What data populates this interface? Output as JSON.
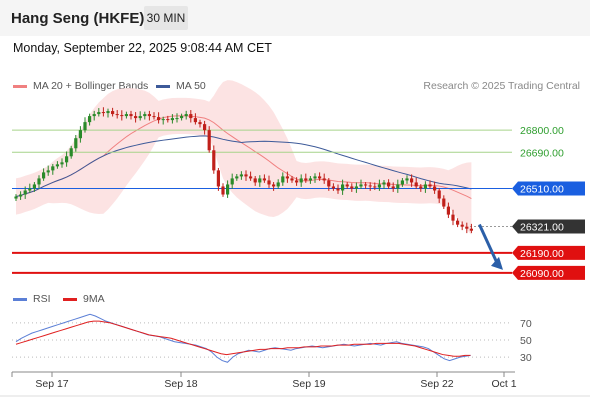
{
  "header": {
    "instrument": "Hang Seng (HKFE)",
    "timeframe": "30 MIN",
    "timestamp": "Monday, September 22, 2025 9:08:44 AM CET"
  },
  "legend": {
    "bollinger": {
      "label": "MA 20 + Bollinger Bands",
      "color": "#f08080"
    },
    "ma50": {
      "label": "MA 50",
      "color": "#3d5a99"
    },
    "credit": "Research © 2025 Trading Central"
  },
  "rsi_legend": {
    "rsi": {
      "label": "RSI",
      "color": "#5b7fd6"
    },
    "ma9": {
      "label": "9MA",
      "color": "#e02020"
    }
  },
  "chart_data": [
    {
      "type": "candlestick",
      "title": "Hang Seng (HKFE) 30 MIN",
      "ylim": [
        26030,
        26950
      ],
      "x_tick_labels": [
        "Sep 17",
        "Sep 18",
        "Sep 19",
        "Sep 22",
        "Oct 1"
      ],
      "ohlc_close": [
        26470,
        26480,
        26500,
        26510,
        26530,
        26560,
        26590,
        26600,
        26620,
        26630,
        26640,
        26670,
        26710,
        26760,
        26800,
        26840,
        26870,
        26880,
        26890,
        26885,
        26895,
        26880,
        26875,
        26870,
        26880,
        26870,
        26860,
        26870,
        26880,
        26870,
        26865,
        26850,
        26855,
        26850,
        26860,
        26860,
        26870,
        26880,
        26860,
        26840,
        26830,
        26800,
        26700,
        26600,
        26520,
        26480,
        26530,
        26560,
        26570,
        26580,
        26570,
        26560,
        26540,
        26560,
        26550,
        26530,
        26520,
        26540,
        26570,
        26560,
        26550,
        26540,
        26560,
        26550,
        26560,
        26570,
        26560,
        26550,
        26520,
        26510,
        26500,
        26530,
        26520,
        26510,
        26520,
        26530,
        26525,
        26520,
        26515,
        26530,
        26540,
        26520,
        26510,
        26530,
        26550,
        26560,
        26540,
        26520,
        26510,
        26530,
        26520,
        26500,
        26460,
        26420,
        26380,
        26350,
        26330,
        26320,
        26310,
        26300
      ],
      "levels": [
        {
          "value": 26800.0,
          "label": "26800.00",
          "color": "#2e9e2e",
          "style": "resistance"
        },
        {
          "value": 26690.0,
          "label": "26690.00",
          "color": "#2e9e2e",
          "style": "resistance"
        },
        {
          "value": 26510.0,
          "label": "26510.00",
          "color": "#1a5fe0",
          "style": "pivot"
        },
        {
          "value": 26321.0,
          "label": "26321.00",
          "color": "#333333",
          "style": "last-price"
        },
        {
          "value": 26190.0,
          "label": "26190.00",
          "color": "#e01010",
          "style": "support"
        },
        {
          "value": 26090.0,
          "label": "26090.00",
          "color": "#e01010",
          "style": "support"
        }
      ],
      "series": [
        {
          "name": "MA 20 + Bollinger Bands",
          "color": "#f08080"
        },
        {
          "name": "MA 50",
          "color": "#3d5a99"
        }
      ]
    },
    {
      "type": "line",
      "ylim": [
        15,
        85
      ],
      "y_tick_labels": [
        "70",
        "50",
        "30"
      ],
      "y_ticks": [
        70,
        50,
        30
      ],
      "series": [
        {
          "name": "RSI",
          "color": "#5b7fd6",
          "values": [
            48,
            52,
            55,
            58,
            60,
            62,
            64,
            66,
            68,
            70,
            72,
            74,
            76,
            78,
            80,
            78,
            75,
            72,
            70,
            68,
            66,
            64,
            62,
            60,
            58,
            56,
            55,
            54,
            52,
            50,
            48,
            47,
            46,
            45,
            44,
            42,
            40,
            36,
            30,
            26,
            24,
            30,
            34,
            36,
            38,
            37,
            36,
            38,
            40,
            41,
            40,
            39,
            38,
            40,
            41,
            42,
            43,
            42,
            41,
            42,
            43,
            44,
            45,
            44,
            43,
            44,
            45,
            46,
            45,
            44,
            46,
            47,
            48,
            46,
            45,
            44,
            43,
            42,
            40,
            36,
            32,
            28,
            26,
            28,
            30,
            31,
            32
          ]
        },
        {
          "name": "9MA",
          "color": "#e02020",
          "values": [
            45,
            47,
            49,
            51,
            53,
            55,
            57,
            59,
            61,
            63,
            65,
            67,
            69,
            71,
            72,
            72,
            71,
            70,
            68,
            66,
            64,
            62,
            60,
            58,
            56,
            55,
            54,
            53,
            52,
            50,
            48,
            46,
            44,
            42,
            40,
            38,
            36,
            34,
            33,
            34,
            35,
            36,
            37,
            38,
            39,
            39,
            40,
            40,
            40,
            41,
            41,
            41,
            42,
            42,
            42,
            43,
            43,
            43,
            44,
            44,
            44,
            45,
            45,
            45,
            45,
            46,
            46,
            46,
            46,
            46,
            45,
            44,
            43,
            41,
            39,
            37,
            35,
            33,
            32,
            31,
            31,
            32,
            32
          ]
        }
      ]
    }
  ]
}
